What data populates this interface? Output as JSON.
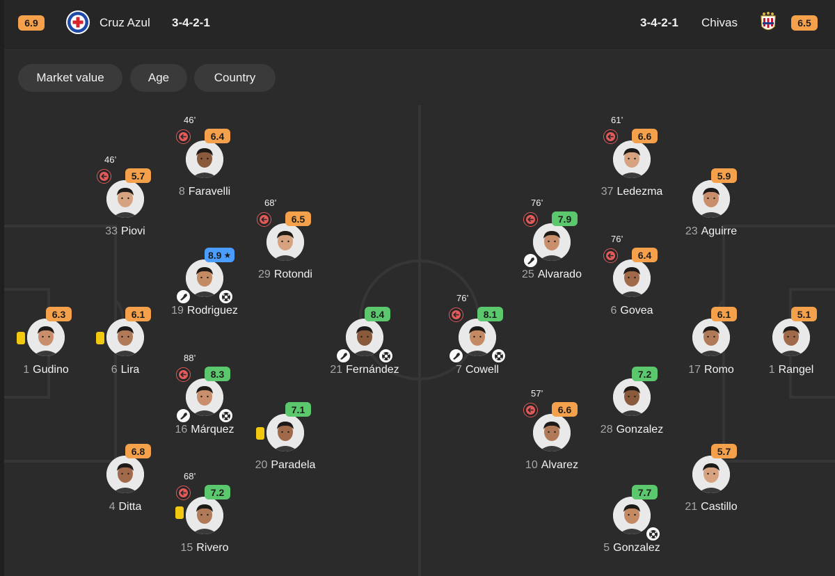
{
  "colors": {
    "rating_orange": "#f5a04b",
    "rating_green": "#5cc86e",
    "rating_blue": "#4a9eff",
    "sub_red": "#e35a5a",
    "card_yellow": "#f2c811"
  },
  "header": {
    "home": {
      "rating": "6.9",
      "name": "Cruz Azul",
      "formation": "3-4-2-1",
      "rating_color": "#f5a04b",
      "crest_icon": "cruz-azul-crest-icon"
    },
    "away": {
      "rating": "6.5",
      "name": "Chivas",
      "formation": "3-4-2-1",
      "rating_color": "#f5a04b",
      "crest_icon": "chivas-crest-icon"
    }
  },
  "filters": [
    {
      "label": "Market value"
    },
    {
      "label": "Age"
    },
    {
      "label": "Country"
    }
  ],
  "players": [
    {
      "id": "gudino",
      "number": "1",
      "name": "Gudino",
      "rating": "6.3",
      "rating_color": "#f5a04b",
      "yellow": true
    },
    {
      "id": "lira",
      "number": "6",
      "name": "Lira",
      "rating": "6.1",
      "rating_color": "#f5a04b",
      "yellow": true
    },
    {
      "id": "piovi",
      "number": "33",
      "name": "Piovi",
      "rating": "5.7",
      "rating_color": "#f5a04b",
      "sub_minute": "46’"
    },
    {
      "id": "ditta",
      "number": "4",
      "name": "Ditta",
      "rating": "6.8",
      "rating_color": "#f5a04b"
    },
    {
      "id": "faravelli",
      "number": "8",
      "name": "Faravelli",
      "rating": "6.4",
      "rating_color": "#f5a04b",
      "sub_minute": "46’"
    },
    {
      "id": "rodriguez",
      "number": "19",
      "name": "Rodriguez",
      "rating": "8.9",
      "rating_color": "#4a9eff",
      "star": true,
      "assist": true,
      "goal": true
    },
    {
      "id": "marquez",
      "number": "16",
      "name": "Márquez",
      "rating": "8.3",
      "rating_color": "#5cc86e",
      "sub_minute": "88’",
      "assist": true,
      "goal": true
    },
    {
      "id": "rivero",
      "number": "15",
      "name": "Rivero",
      "rating": "7.2",
      "rating_color": "#5cc86e",
      "sub_minute": "68’",
      "yellow": true
    },
    {
      "id": "rotondi",
      "number": "29",
      "name": "Rotondi",
      "rating": "6.5",
      "rating_color": "#f5a04b",
      "sub_minute": "68’"
    },
    {
      "id": "paradela",
      "number": "20",
      "name": "Paradela",
      "rating": "7.1",
      "rating_color": "#5cc86e",
      "yellow": true
    },
    {
      "id": "fernandez",
      "number": "21",
      "name": "Fernández",
      "rating": "8.4",
      "rating_color": "#5cc86e",
      "assist": true,
      "goal": true
    },
    {
      "id": "cowell",
      "number": "7",
      "name": "Cowell",
      "rating": "8.1",
      "rating_color": "#5cc86e",
      "sub_minute": "76’",
      "assist": true,
      "goal": true
    },
    {
      "id": "alvarado",
      "number": "25",
      "name": "Alvarado",
      "rating": "7.9",
      "rating_color": "#5cc86e",
      "sub_minute": "76’",
      "assist": true
    },
    {
      "id": "alvarez",
      "number": "10",
      "name": "Alvarez",
      "rating": "6.6",
      "rating_color": "#f5a04b",
      "sub_minute": "57’"
    },
    {
      "id": "ledezma",
      "number": "37",
      "name": "Ledezma",
      "rating": "6.6",
      "rating_color": "#f5a04b",
      "sub_minute": "61’"
    },
    {
      "id": "govea",
      "number": "6",
      "name": "Govea",
      "rating": "6.4",
      "rating_color": "#f5a04b",
      "sub_minute": "76’"
    },
    {
      "id": "gonzalez28",
      "number": "28",
      "name": "Gonzalez",
      "rating": "7.2",
      "rating_color": "#5cc86e"
    },
    {
      "id": "gonzalez5",
      "number": "5",
      "name": "Gonzalez",
      "rating": "7.7",
      "rating_color": "#5cc86e",
      "goal": true
    },
    {
      "id": "aguirre",
      "number": "23",
      "name": "Aguirre",
      "rating": "5.9",
      "rating_color": "#f5a04b"
    },
    {
      "id": "romo",
      "number": "17",
      "name": "Romo",
      "rating": "6.1",
      "rating_color": "#f5a04b"
    },
    {
      "id": "castillo",
      "number": "21",
      "name": "Castillo",
      "rating": "5.7",
      "rating_color": "#f5a04b"
    },
    {
      "id": "rangel",
      "number": "1",
      "name": "Rangel",
      "rating": "5.1",
      "rating_color": "#f5a04b"
    }
  ]
}
